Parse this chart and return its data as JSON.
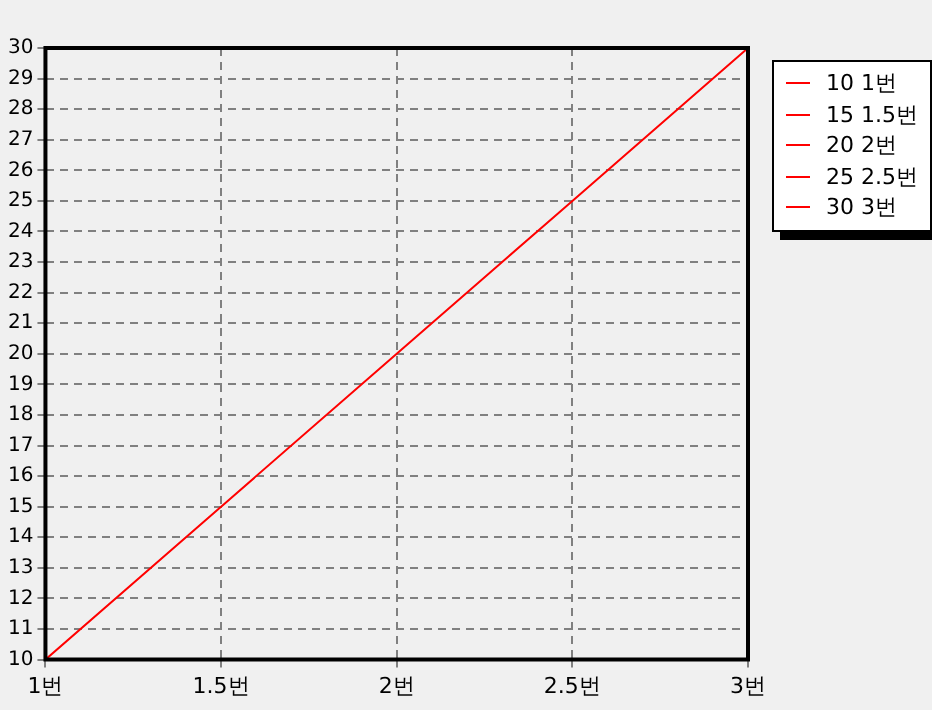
{
  "chart_data": {
    "type": "line",
    "categories": [
      "1번",
      "1.5번",
      "2번",
      "2.5번",
      "3번"
    ],
    "series": [
      {
        "color": "#ff0000",
        "values": [
          10,
          15,
          20,
          25,
          30
        ]
      }
    ],
    "ylim": [
      10,
      30
    ],
    "yticks": [
      10,
      11,
      12,
      13,
      14,
      15,
      16,
      17,
      18,
      19,
      20,
      21,
      22,
      23,
      24,
      25,
      26,
      27,
      28,
      29,
      30
    ],
    "grid": true,
    "marker": "none",
    "line_style": "solid",
    "annotations": [
      "10 1번",
      "15 1.5번",
      "20 2번",
      "25 2.5번",
      "30 3번"
    ]
  }
}
